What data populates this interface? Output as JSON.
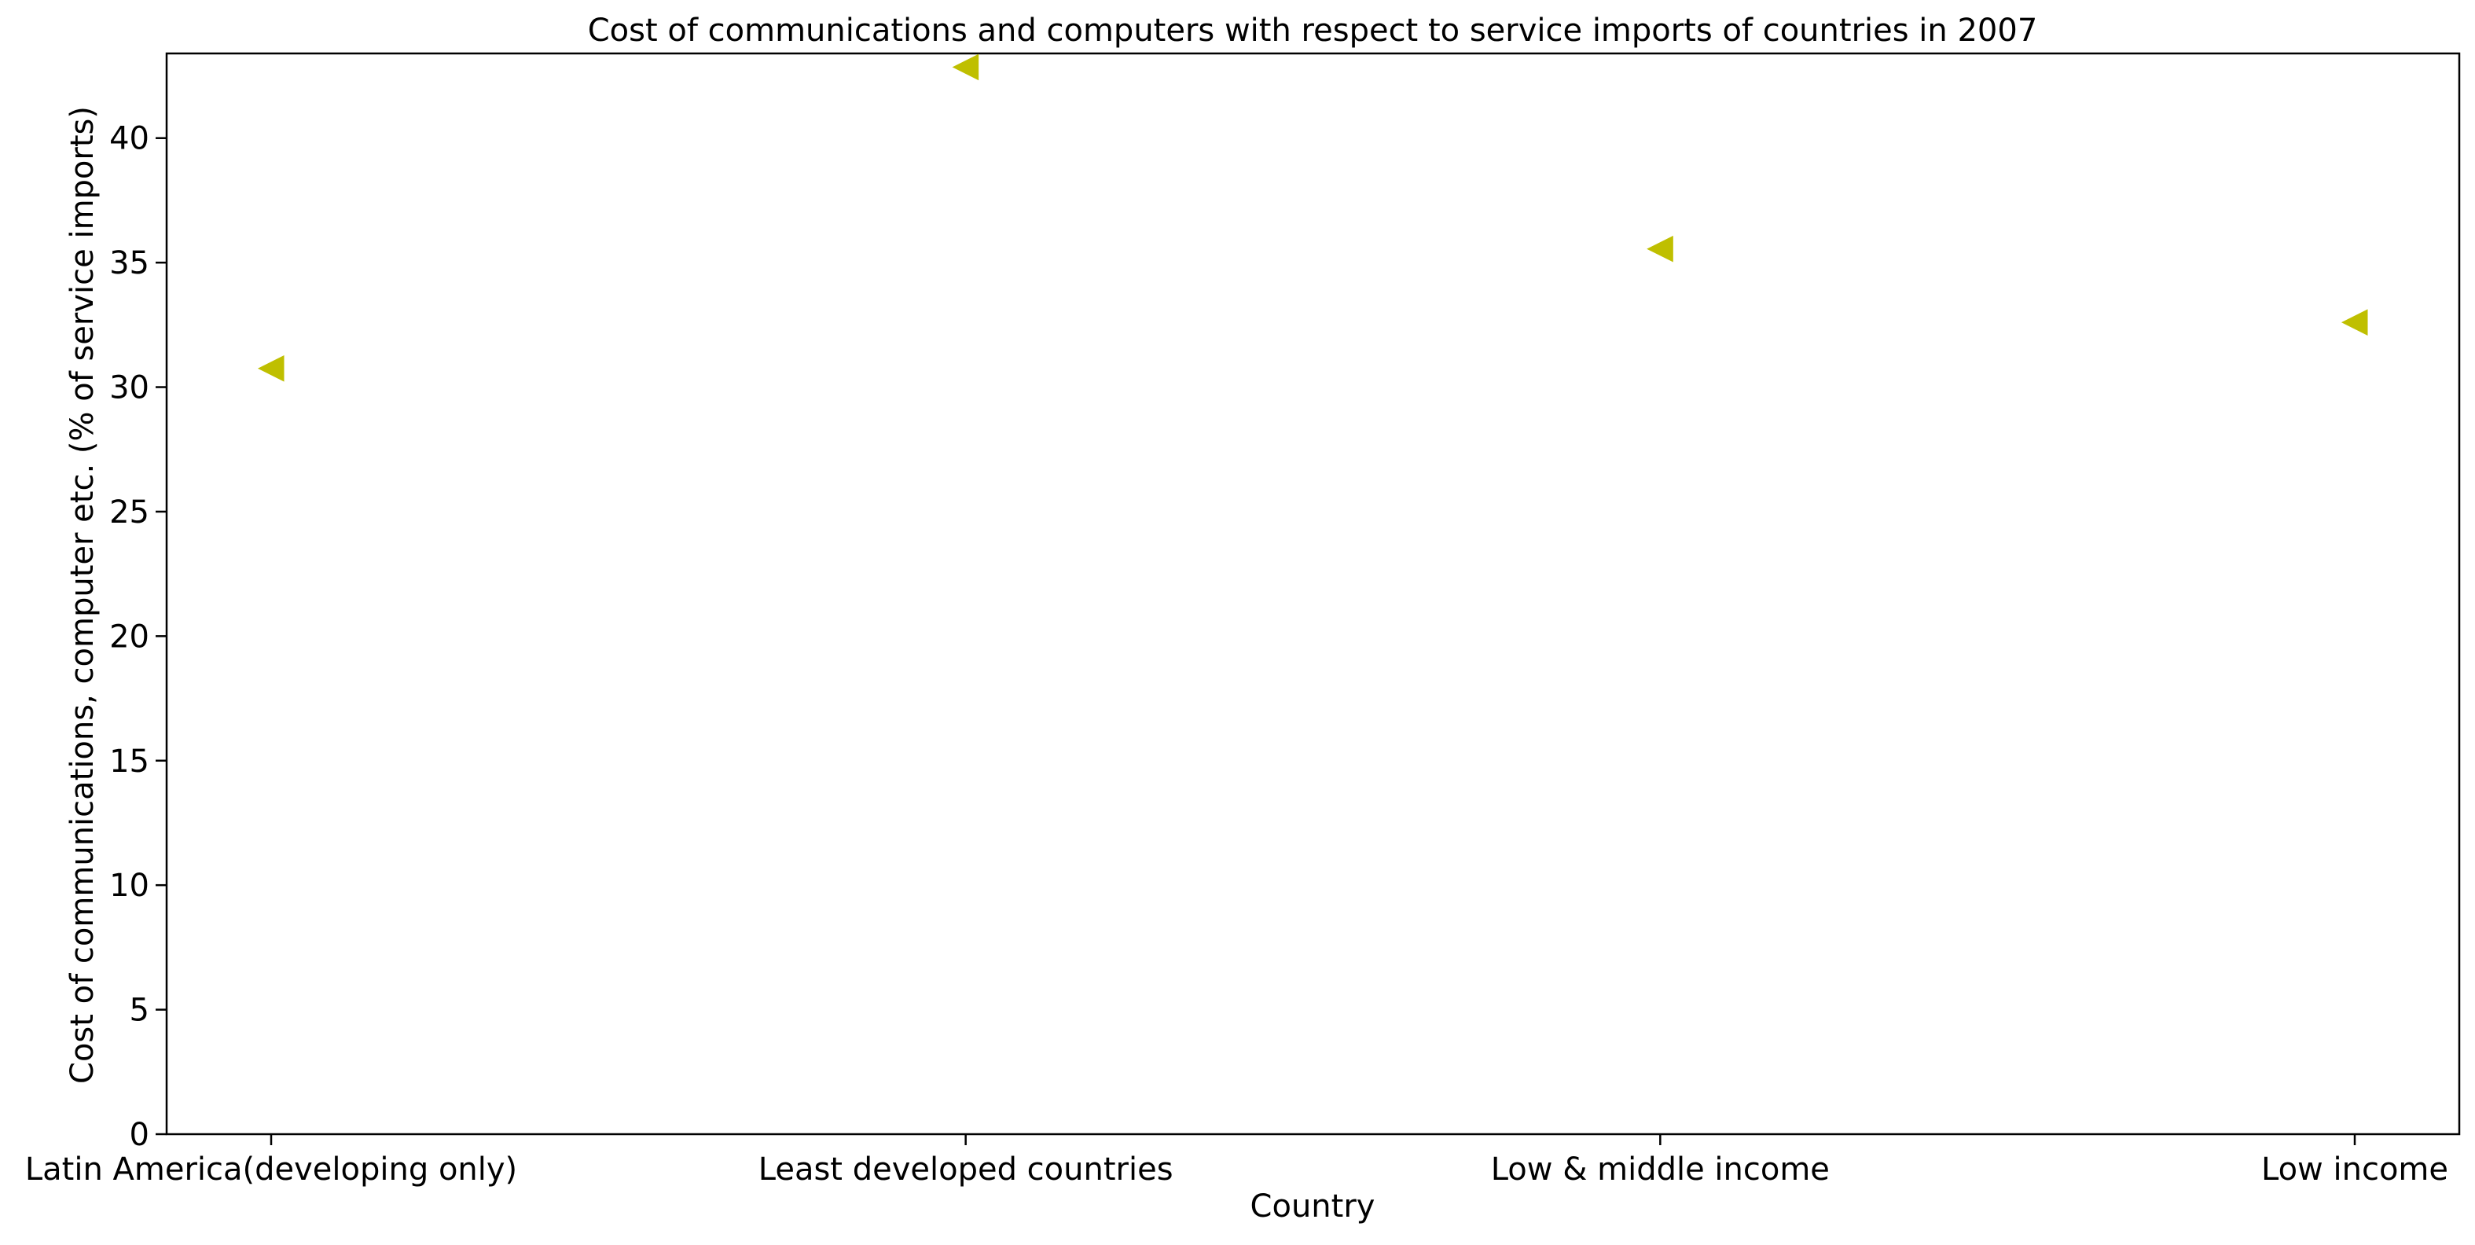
{
  "chart_data": {
    "type": "scatter",
    "title": "Cost of communications and computers with respect to service imports of countries in 2007",
    "xlabel": "Country",
    "ylabel": "Cost of communications, computer etc. (% of service imports)",
    "categories": [
      "Latin America(developing only)",
      "Least developed countries",
      "Low & middle income",
      "Low income"
    ],
    "values": [
      30.75,
      42.85,
      35.55,
      32.6
    ],
    "ylim": [
      0,
      43.4
    ],
    "yticks": [
      0,
      5,
      10,
      15,
      20,
      25,
      30,
      35,
      40
    ],
    "marker": "triangle-left",
    "marker_color": "#bfbf00",
    "grid": false,
    "legend": "none"
  }
}
